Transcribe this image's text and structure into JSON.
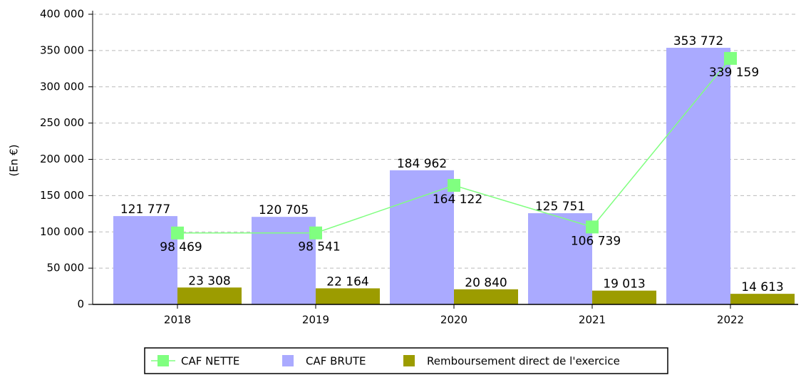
{
  "chart_data": {
    "type": "bar",
    "y_label": "(En €)",
    "categories": [
      "2018",
      "2019",
      "2020",
      "2021",
      "2022"
    ],
    "series": [
      {
        "name": "CAF NETTE",
        "type": "line",
        "color": "#80ff80",
        "values": [
          98469,
          98541,
          164122,
          106739,
          339159
        ],
        "value_labels": [
          "98 469",
          "98 541",
          "164 122",
          "106 739",
          "339 159"
        ]
      },
      {
        "name": "CAF BRUTE",
        "type": "bar",
        "color": "#aaaaff",
        "values": [
          121777,
          120705,
          184962,
          125751,
          353772
        ],
        "value_labels": [
          "121 777",
          "120 705",
          "184 962",
          "125 751",
          "353 772"
        ]
      },
      {
        "name": "Remboursement direct de l'exercice",
        "type": "bar",
        "color": "#9c9c00",
        "values": [
          23308,
          22164,
          20840,
          19013,
          14613
        ],
        "value_labels": [
          "23 308",
          "22 164",
          "20 840",
          "19 013",
          "14 613"
        ]
      }
    ],
    "ylim": [
      0,
      400000
    ],
    "yticks": [
      0,
      {
        "value": 50000,
        "label": "50 000"
      },
      {
        "value": 100000,
        "label": "100 000"
      },
      {
        "value": 150000,
        "label": "150 000"
      },
      {
        "value": 200000,
        "label": "200 000"
      },
      {
        "value": 250000,
        "label": "250 000"
      },
      {
        "value": 300000,
        "label": "300 000"
      },
      {
        "value": 350000,
        "label": "350 000"
      },
      {
        "value": 400000,
        "label": "400 000"
      }
    ],
    "grid": true
  }
}
